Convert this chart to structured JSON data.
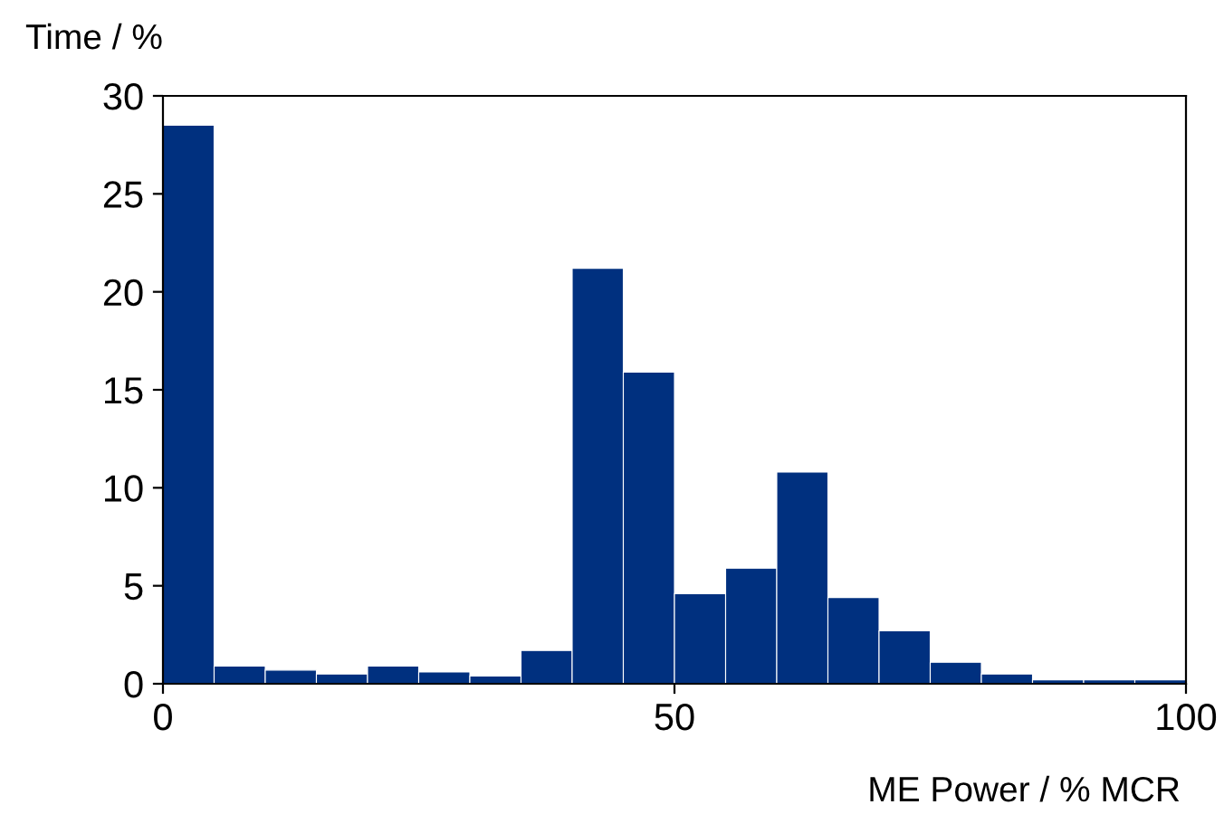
{
  "chart_data": {
    "type": "histogram",
    "xlabel": "ME Power / % MCR",
    "ylabel": "Time / %",
    "bins": [
      0,
      5,
      10,
      15,
      20,
      25,
      30,
      35,
      40,
      45,
      50,
      55,
      60,
      65,
      70,
      75,
      80,
      85,
      90,
      95,
      100
    ],
    "values": [
      28.5,
      0.9,
      0.7,
      0.5,
      0.9,
      0.6,
      0.4,
      1.7,
      21.2,
      15.9,
      4.6,
      5.9,
      10.8,
      4.4,
      2.7,
      1.1,
      0.5,
      0.2,
      0.2,
      0.2
    ],
    "color": "#00307f",
    "xlim": [
      0,
      100
    ],
    "xticks": [
      0,
      50,
      100
    ],
    "ylim": [
      0,
      30
    ],
    "yticks": [
      0,
      5,
      10,
      15,
      20,
      25,
      30
    ],
    "grid": false
  }
}
